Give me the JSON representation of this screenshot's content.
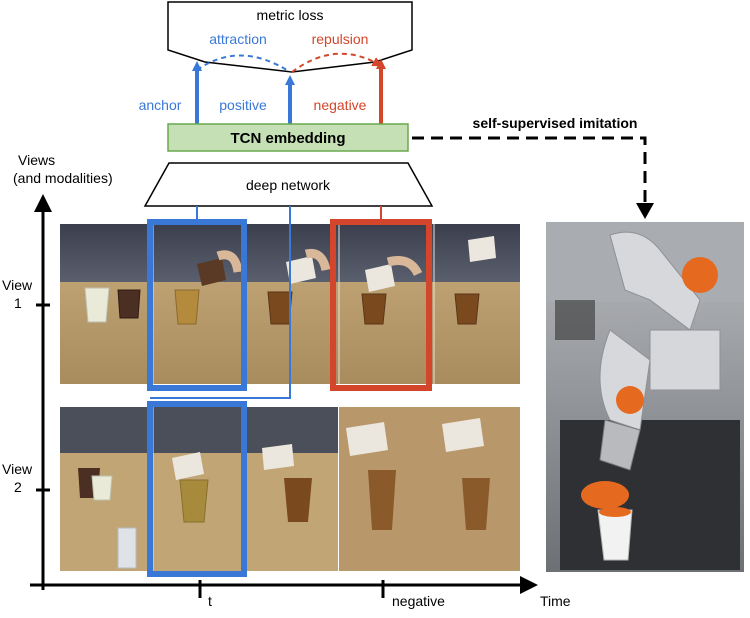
{
  "top_box": {
    "label": "metric loss"
  },
  "loss_terms": {
    "attraction": "attraction",
    "repulsion": "repulsion"
  },
  "embedding_roles": {
    "anchor": "anchor",
    "positive": "positive",
    "negative": "negative"
  },
  "embedding": {
    "label": "TCN embedding"
  },
  "network": {
    "label": "deep network"
  },
  "imitation": {
    "label": "self-supervised imitation"
  },
  "axes": {
    "y_label_line1": "Views",
    "y_label_line2": "(and modalities)",
    "view1_line1": "View",
    "view1_line2": "1",
    "view2_line1": "View",
    "view2_line2": "2",
    "x_label": "Time",
    "tick_t": "t",
    "tick_negative": "negative"
  },
  "colors": {
    "blue": "#3a78d8",
    "red": "#d4462b",
    "embedding_fill": "#c5e0b4",
    "embedding_stroke": "#6aa84f",
    "table": "#b89a6a",
    "wall": "#4a4f5c",
    "tea": "#7a4a1e"
  }
}
